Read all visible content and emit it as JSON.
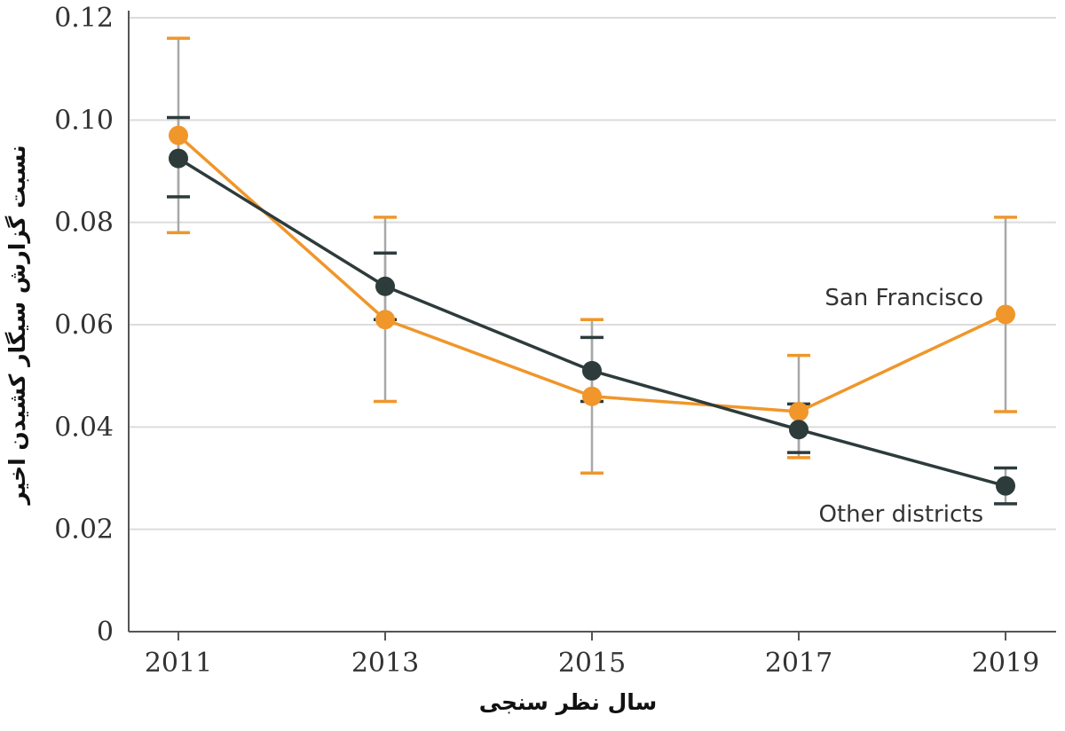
{
  "chart_data": {
    "type": "line",
    "xlabel": "سال نظر سنجی",
    "ylabel": "نسبت گزارش سیگار کشیدن اخیر",
    "x": [
      "2011",
      "2013",
      "2015",
      "2017",
      "2019"
    ],
    "ylim": [
      0,
      0.12
    ],
    "yticks": [
      "0",
      "0.02",
      "0.04",
      "0.06",
      "0.08",
      "0.10",
      "0.12"
    ],
    "grid": true,
    "series": [
      {
        "name": "San Francisco",
        "color": "#f0962a",
        "values": [
          0.097,
          0.061,
          0.046,
          0.043,
          0.062
        ],
        "err_low": [
          0.078,
          0.045,
          0.031,
          0.034,
          0.043
        ],
        "err_high": [
          0.116,
          0.081,
          0.061,
          0.054,
          0.081
        ]
      },
      {
        "name": "Other districts",
        "color": "#2d3b3b",
        "values": [
          0.0925,
          0.0675,
          0.051,
          0.0395,
          0.0285
        ],
        "err_low": [
          0.085,
          0.061,
          0.045,
          0.035,
          0.025
        ],
        "err_high": [
          0.1005,
          0.074,
          0.0575,
          0.0445,
          0.032
        ]
      }
    ]
  }
}
